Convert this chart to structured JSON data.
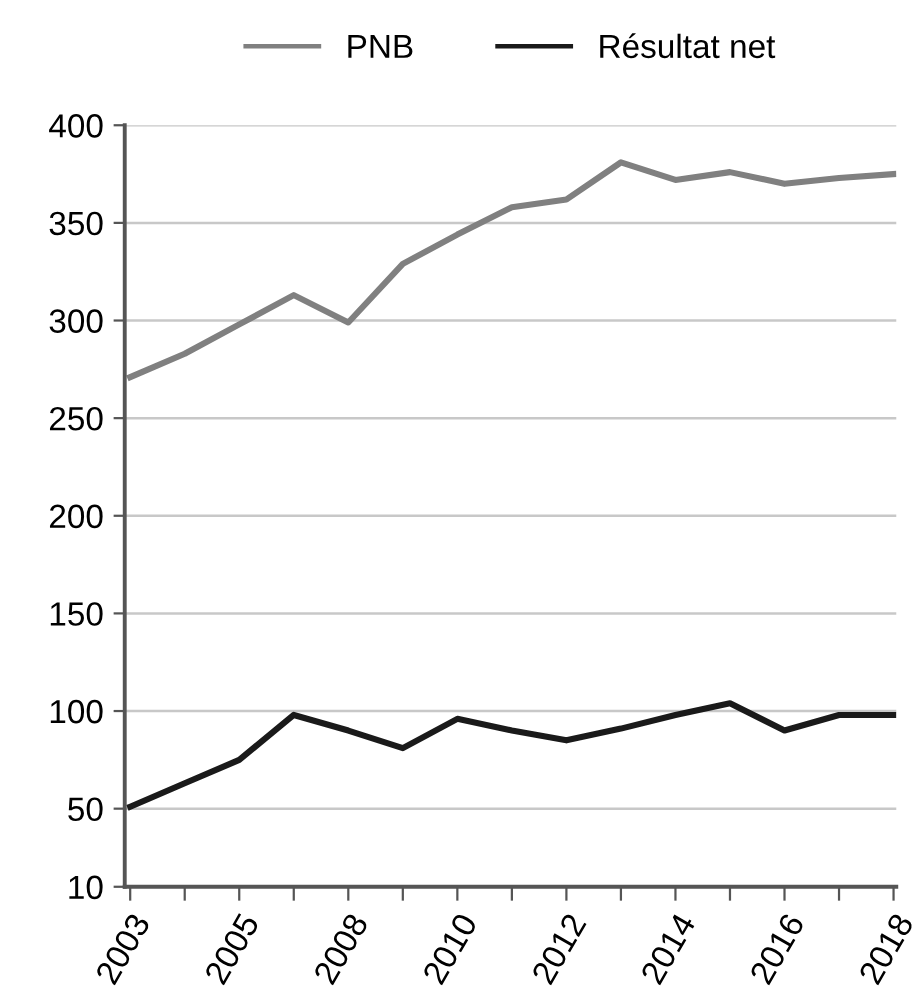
{
  "chart_data": {
    "type": "line",
    "categories": [
      "2003",
      null,
      "2005",
      null,
      "2008",
      null,
      "2010",
      null,
      "2012",
      null,
      "2014",
      null,
      "2016",
      null,
      "2018"
    ],
    "series": [
      {
        "name": "PNB",
        "color": "#808080",
        "values": [
          271,
          283,
          298,
          313,
          299,
          329,
          344,
          358,
          362,
          381,
          372,
          376,
          370,
          373,
          375
        ]
      },
      {
        "name": "Résultat net",
        "color": "#1a1a1a",
        "values": [
          51,
          63,
          75,
          98,
          90,
          81,
          96,
          90,
          85,
          91,
          98,
          104,
          90,
          98,
          98
        ]
      }
    ],
    "ylim": [
      10,
      400
    ],
    "yticks": [
      10,
      50,
      100,
      150,
      200,
      250,
      300,
      350,
      400
    ],
    "grid": "y",
    "legend": "top",
    "marker": "none",
    "line_style": "solid"
  }
}
